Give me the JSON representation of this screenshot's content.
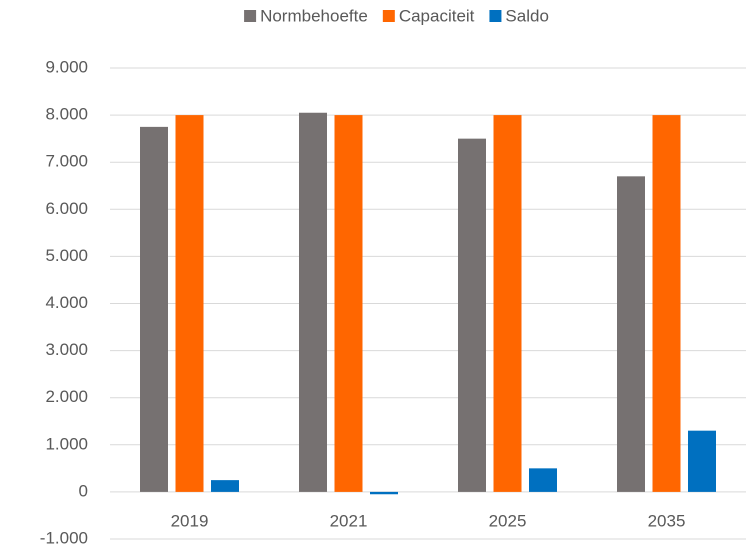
{
  "chart_data": {
    "type": "bar",
    "categories": [
      "2019",
      "2021",
      "2025",
      "2035"
    ],
    "series": [
      {
        "name": "Normbehoefte",
        "color": "#767171",
        "values": [
          7750,
          8050,
          7500,
          6700
        ]
      },
      {
        "name": "Capaciteit",
        "color": "#ff6600",
        "values": [
          8000,
          8000,
          8000,
          8000
        ]
      },
      {
        "name": "Saldo",
        "color": "#0070c0",
        "values": [
          250,
          -50,
          500,
          1300
        ]
      }
    ],
    "ylim": [
      -1000,
      9000
    ],
    "yticks": [
      {
        "value": -1000,
        "label": "-1.000"
      },
      0,
      {
        "value": 1000,
        "label": "1.000"
      },
      {
        "value": 2000,
        "label": "2.000"
      },
      {
        "value": 3000,
        "label": "3.000"
      },
      {
        "value": 4000,
        "label": "4.000"
      },
      {
        "value": 5000,
        "label": "5.000"
      },
      {
        "value": 6000,
        "label": "6.000"
      },
      {
        "value": 7000,
        "label": "7.000"
      },
      {
        "value": 8000,
        "label": "8.000"
      },
      {
        "value": 9000,
        "label": "9.000"
      }
    ],
    "grid": true,
    "legend": "top"
  }
}
